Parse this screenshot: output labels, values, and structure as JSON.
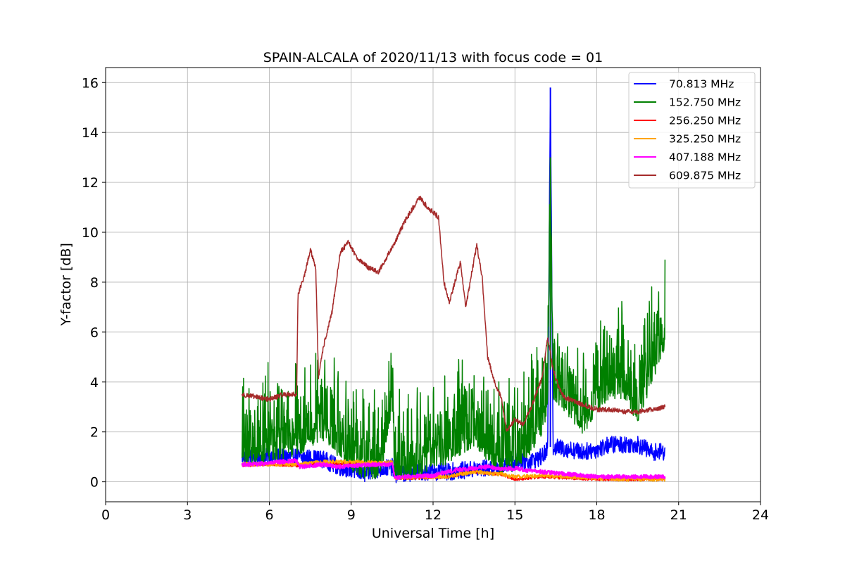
{
  "chart_data": {
    "type": "line",
    "title": "SPAIN-ALCALA of 2020/11/13 with focus code = 01",
    "xlabel": "Universal Time [h]",
    "ylabel": "Y-factor [dB]",
    "xlim": [
      0,
      24
    ],
    "ylim": [
      -0.8,
      16.6
    ],
    "xticks": [
      0,
      3,
      6,
      9,
      12,
      15,
      18,
      21,
      24
    ],
    "yticks": [
      0,
      2,
      4,
      6,
      8,
      10,
      12,
      14,
      16
    ],
    "xtick_labels": [
      "0",
      "3",
      "6",
      "9",
      "12",
      "15",
      "18",
      "21",
      "24"
    ],
    "ytick_labels": [
      "0",
      "2",
      "4",
      "6",
      "8",
      "10",
      "12",
      "14",
      "16"
    ],
    "grid": true,
    "legend_position": "top-right",
    "series": [
      {
        "name": " 70.813 MHz",
        "color": "#0000ff",
        "noise": 0.35,
        "x": [
          5.0,
          6.0,
          7.0,
          8.0,
          8.5,
          9.0,
          9.5,
          10.0,
          10.5,
          10.6,
          11.5,
          12.5,
          13.5,
          14.5,
          15.0,
          15.5,
          16.0,
          16.2,
          16.3,
          16.4,
          17.0,
          17.5,
          18.0,
          18.5,
          19.0,
          19.5,
          20.0,
          20.5
        ],
        "y": [
          1.0,
          1.0,
          1.0,
          0.9,
          0.6,
          0.5,
          0.3,
          0.5,
          0.6,
          0.3,
          0.4,
          0.4,
          0.5,
          0.6,
          0.8,
          0.8,
          1.0,
          1.3,
          15.8,
          1.4,
          1.3,
          1.2,
          1.3,
          1.5,
          1.5,
          1.5,
          1.2,
          1.2
        ]
      },
      {
        "name": "152.750 MHz",
        "color": "#008000",
        "noise": 1.3,
        "x": [
          5.0,
          6.0,
          7.0,
          7.5,
          8.0,
          8.5,
          9.0,
          9.5,
          10.0,
          10.2,
          10.5,
          10.6,
          11.0,
          11.5,
          12.0,
          12.5,
          13.0,
          13.5,
          14.0,
          14.5,
          15.0,
          15.5,
          16.0,
          16.2,
          16.3,
          16.4,
          16.8,
          17.5,
          18.0,
          18.5,
          19.0,
          19.5,
          20.0,
          20.3,
          20.5
        ],
        "y": [
          1.8,
          2.0,
          2.2,
          2.5,
          2.8,
          2.2,
          1.6,
          1.2,
          1.3,
          2.0,
          4.0,
          1.0,
          1.2,
          1.3,
          1.8,
          1.8,
          2.2,
          2.6,
          2.0,
          1.5,
          1.6,
          2.2,
          3.0,
          4.0,
          13.0,
          4.5,
          4.0,
          3.0,
          4.0,
          4.5,
          4.5,
          3.5,
          5.0,
          6.0,
          6.5
        ]
      },
      {
        "name": "256.250 MHz",
        "color": "#ff0000",
        "noise": 0.06,
        "x": [
          5.0,
          6.0,
          7.0,
          8.0,
          9.0,
          10.0,
          10.5,
          10.6,
          11.5,
          12.5,
          13.5,
          14.5,
          15.0,
          16.0,
          17.0,
          18.0,
          19.0,
          20.0,
          20.5
        ],
        "y": [
          0.65,
          0.7,
          0.65,
          0.75,
          0.7,
          0.7,
          0.75,
          0.15,
          0.15,
          0.2,
          0.4,
          0.3,
          0.1,
          0.2,
          0.15,
          0.1,
          0.1,
          0.1,
          0.1
        ]
      },
      {
        "name": "325.250 MHz",
        "color": "#ffa500",
        "noise": 0.08,
        "x": [
          5.0,
          6.0,
          7.0,
          8.0,
          9.0,
          10.0,
          10.5,
          10.6,
          11.5,
          12.5,
          13.5,
          14.5,
          15.0,
          16.0,
          17.0,
          18.0,
          19.0,
          20.0,
          20.5
        ],
        "y": [
          0.7,
          0.7,
          0.7,
          0.8,
          0.8,
          0.75,
          0.8,
          0.15,
          0.2,
          0.2,
          0.4,
          0.3,
          0.2,
          0.25,
          0.2,
          0.15,
          0.1,
          0.1,
          0.1
        ]
      },
      {
        "name": "407.188 MHz",
        "color": "#ff00ff",
        "noise": 0.08,
        "x": [
          5.0,
          5.5,
          6.0,
          6.5,
          7.0,
          7.1,
          8.0,
          8.5,
          9.0,
          10.0,
          10.5,
          10.6,
          11.0,
          12.0,
          12.5,
          13.0,
          13.5,
          14.0,
          14.5,
          15.0,
          15.5,
          16.0,
          16.5,
          17.0,
          17.5,
          18.0,
          19.0,
          20.0,
          20.5
        ],
        "y": [
          0.7,
          0.7,
          0.75,
          0.8,
          0.85,
          0.6,
          0.7,
          0.6,
          0.65,
          0.7,
          0.7,
          0.15,
          0.2,
          0.25,
          0.4,
          0.5,
          0.55,
          0.6,
          0.5,
          0.55,
          0.45,
          0.4,
          0.35,
          0.3,
          0.25,
          0.2,
          0.2,
          0.2,
          0.2
        ]
      },
      {
        "name": "609.875 MHz",
        "color": "#a52a2a",
        "noise": 0.1,
        "x": [
          5.0,
          5.5,
          6.0,
          6.5,
          7.0,
          7.05,
          7.3,
          7.5,
          7.7,
          7.8,
          8.0,
          8.3,
          8.6,
          8.9,
          9.2,
          9.6,
          10.0,
          10.3,
          10.6,
          11.0,
          11.5,
          11.8,
          12.2,
          12.4,
          12.6,
          13.0,
          13.2,
          13.6,
          13.8,
          14.0,
          14.3,
          14.5,
          14.7,
          15.0,
          15.3,
          15.6,
          16.0,
          16.2,
          16.4,
          16.6,
          16.8,
          17.2,
          17.5,
          18.0,
          18.5,
          19.0,
          19.5,
          20.0,
          20.5
        ],
        "y": [
          3.5,
          3.4,
          3.3,
          3.5,
          3.5,
          7.5,
          8.3,
          9.3,
          8.6,
          4.2,
          5.5,
          6.8,
          9.2,
          9.6,
          9.0,
          8.6,
          8.4,
          9.0,
          9.6,
          10.5,
          11.4,
          11.0,
          10.6,
          8.0,
          7.2,
          8.8,
          7.0,
          9.5,
          8.2,
          5.0,
          3.8,
          3.4,
          2.0,
          2.5,
          2.3,
          3.0,
          4.2,
          5.8,
          4.5,
          3.8,
          3.4,
          3.2,
          3.1,
          2.9,
          2.9,
          2.8,
          2.8,
          2.9,
          3.0
        ]
      }
    ]
  }
}
